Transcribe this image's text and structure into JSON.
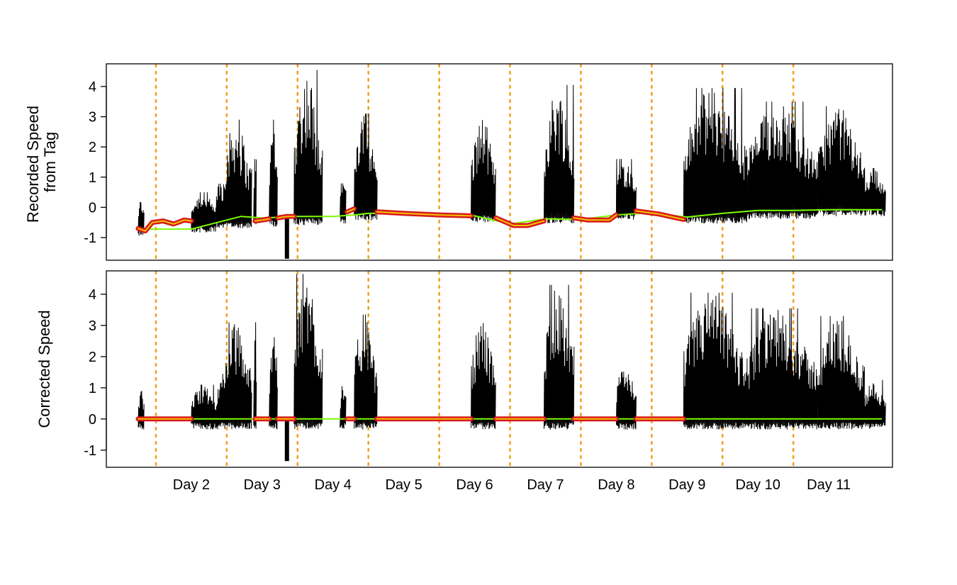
{
  "chart_data": [
    {
      "type": "line",
      "ylabel_lines": [
        "Recorded Speed",
        "from Tag"
      ],
      "ylim": [
        -1.75,
        4.75
      ],
      "yticks": [
        -1,
        0,
        1,
        2,
        3,
        4
      ],
      "ytick_labels": [
        "-1",
        "0",
        "1",
        "2",
        "3",
        "4"
      ],
      "grid": false,
      "legend": "none",
      "series": [
        {
          "role": "speed",
          "color": "#000000",
          "active_segments": [
            {
              "x0": 1.25,
              "x1": 1.33,
              "base": -0.6,
              "peak": 0.3
            },
            {
              "x0": 2.0,
              "x1": 2.35,
              "base": -0.5,
              "peak": 0.5
            },
            {
              "x0": 2.35,
              "x1": 2.45,
              "base": -0.4,
              "peak": 1.1
            },
            {
              "x0": 2.45,
              "x1": 2.85,
              "base": -0.35,
              "peak": 2.9
            },
            {
              "x0": 2.88,
              "x1": 2.92,
              "base": -0.3,
              "peak": 2.9
            },
            {
              "x0": 3.1,
              "x1": 3.22,
              "base": -0.3,
              "peak": 2.9
            },
            {
              "x0": 3.45,
              "x1": 3.85,
              "base": -0.25,
              "peak": 4.55
            },
            {
              "x0": 4.1,
              "x1": 4.18,
              "base": -0.2,
              "peak": 1.2
            },
            {
              "x0": 4.3,
              "x1": 4.62,
              "base": -0.1,
              "peak": 3.1
            },
            {
              "x0": 5.95,
              "x1": 6.3,
              "base": -0.15,
              "peak": 3.0
            },
            {
              "x0": 6.98,
              "x1": 7.4,
              "base": -0.2,
              "peak": 4.05
            },
            {
              "x0": 8.0,
              "x1": 8.28,
              "base": -0.1,
              "peak": 1.6
            },
            {
              "x0": 8.95,
              "x1": 9.85,
              "base": -0.2,
              "peak": 3.95
            },
            {
              "x0": 9.85,
              "x1": 10.85,
              "base": -0.05,
              "peak": 3.5
            },
            {
              "x0": 10.85,
              "x1": 11.5,
              "base": 0.05,
              "peak": 3.35
            },
            {
              "x0": 11.5,
              "x1": 11.8,
              "base": 0.05,
              "peak": 1.3
            }
          ],
          "spikes": [
            {
              "x": 3.35,
              "ymin": -1.7,
              "ymax": -0.3
            }
          ]
        },
        {
          "role": "offset-estimate",
          "color": "#7cfc00",
          "x": [
            1.25,
            2.0,
            2.7,
            3.0,
            3.5,
            4.0,
            4.3,
            4.5,
            5.0,
            5.5,
            6.0,
            6.5,
            7.0,
            7.5,
            8.0,
            8.5,
            9.0,
            9.5,
            10.0,
            10.5,
            11.0,
            11.5,
            11.75
          ],
          "y": [
            -0.72,
            -0.72,
            -0.3,
            -0.35,
            -0.3,
            -0.3,
            -0.25,
            -0.2,
            -0.2,
            -0.28,
            -0.28,
            -0.55,
            -0.38,
            -0.4,
            -0.25,
            -0.18,
            -0.32,
            -0.2,
            -0.1,
            -0.1,
            -0.08,
            -0.08,
            -0.08
          ]
        },
        {
          "role": "offset-inactive",
          "color": "#d7191c",
          "inner_color": "#f2c400",
          "segments": [
            {
              "x": [
                1.25,
                1.35,
                1.45,
                1.6,
                1.75,
                1.9,
                2.0
              ],
              "y": [
                -0.7,
                -0.78,
                -0.5,
                -0.45,
                -0.55,
                -0.42,
                -0.45
              ]
            },
            {
              "x": [
                2.9,
                3.0,
                3.1
              ],
              "y": [
                -0.45,
                -0.42,
                -0.38
              ]
            },
            {
              "x": [
                3.22,
                3.35,
                3.45
              ],
              "y": [
                -0.35,
                -0.3,
                -0.3
              ]
            },
            {
              "x": [
                4.2,
                4.3
              ],
              "y": [
                -0.15,
                -0.05
              ]
            },
            {
              "x": [
                4.62,
                5.0,
                5.5,
                5.95
              ],
              "y": [
                -0.15,
                -0.2,
                -0.25,
                -0.28
              ]
            },
            {
              "x": [
                6.3,
                6.55,
                6.75,
                6.98
              ],
              "y": [
                -0.35,
                -0.6,
                -0.6,
                -0.45
              ]
            },
            {
              "x": [
                7.4,
                7.6,
                7.9,
                8.0
              ],
              "y": [
                -0.35,
                -0.42,
                -0.42,
                -0.25
              ]
            },
            {
              "x": [
                8.28,
                8.6,
                8.95
              ],
              "y": [
                -0.12,
                -0.22,
                -0.4
              ]
            }
          ]
        }
      ]
    },
    {
      "type": "line",
      "ylabel_lines": [
        "Corrected Speed"
      ],
      "ylim": [
        -1.55,
        4.75
      ],
      "yticks": [
        -1,
        0,
        1,
        2,
        3,
        4
      ],
      "ytick_labels": [
        "-1",
        "0",
        "1",
        "2",
        "3",
        "4"
      ],
      "grid": false,
      "legend": "none",
      "series": [
        {
          "role": "speed",
          "color": "#000000",
          "active_segments": [
            {
              "x0": 1.25,
              "x1": 1.33,
              "base": 0.0,
              "peak": 0.9
            },
            {
              "x0": 2.0,
              "x1": 2.35,
              "base": 0.0,
              "peak": 1.1
            },
            {
              "x0": 2.35,
              "x1": 2.45,
              "base": 0.0,
              "peak": 1.45
            },
            {
              "x0": 2.45,
              "x1": 2.85,
              "base": 0.0,
              "peak": 3.1
            },
            {
              "x0": 2.88,
              "x1": 2.92,
              "base": 0.0,
              "peak": 3.1
            },
            {
              "x0": 3.1,
              "x1": 3.22,
              "base": 0.0,
              "peak": 3.2
            },
            {
              "x0": 3.45,
              "x1": 3.85,
              "base": 0.0,
              "peak": 4.65
            },
            {
              "x0": 4.1,
              "x1": 4.18,
              "base": 0.0,
              "peak": 1.3
            },
            {
              "x0": 4.3,
              "x1": 4.62,
              "base": 0.0,
              "peak": 3.35
            },
            {
              "x0": 5.95,
              "x1": 6.3,
              "base": 0.0,
              "peak": 3.25
            },
            {
              "x0": 6.98,
              "x1": 7.4,
              "base": 0.0,
              "peak": 4.3
            },
            {
              "x0": 8.0,
              "x1": 8.28,
              "base": 0.0,
              "peak": 1.85
            },
            {
              "x0": 8.95,
              "x1": 9.85,
              "base": 0.0,
              "peak": 4.05
            },
            {
              "x0": 9.85,
              "x1": 10.85,
              "base": 0.0,
              "peak": 3.55
            },
            {
              "x0": 10.85,
              "x1": 11.5,
              "base": 0.0,
              "peak": 3.3
            },
            {
              "x0": 11.5,
              "x1": 11.8,
              "base": 0.0,
              "peak": 1.25
            }
          ],
          "spikes": [
            {
              "x": 3.35,
              "ymin": -1.35,
              "ymax": 0.0
            }
          ]
        },
        {
          "role": "offset-estimate",
          "color": "#7cfc00",
          "x": [
            1.25,
            11.75
          ],
          "y": [
            0,
            0
          ]
        },
        {
          "role": "offset-inactive",
          "color": "#d7191c",
          "inner_color": "#f2c400",
          "segments": [
            {
              "x": [
                1.25,
                2.0
              ],
              "y": [
                0,
                0
              ]
            },
            {
              "x": [
                2.9,
                3.1
              ],
              "y": [
                0,
                0
              ]
            },
            {
              "x": [
                3.22,
                3.45
              ],
              "y": [
                0,
                0
              ]
            },
            {
              "x": [
                4.2,
                4.3
              ],
              "y": [
                0,
                0
              ]
            },
            {
              "x": [
                4.62,
                5.95
              ],
              "y": [
                0,
                0
              ]
            },
            {
              "x": [
                6.3,
                6.98
              ],
              "y": [
                0,
                0
              ]
            },
            {
              "x": [
                7.4,
                8.0
              ],
              "y": [
                0,
                0
              ]
            },
            {
              "x": [
                8.28,
                8.95
              ],
              "y": [
                0,
                0
              ]
            }
          ]
        }
      ]
    }
  ],
  "x_axis": {
    "xlim": [
      0.8,
      11.9
    ],
    "day_boundaries": [
      1.5,
      2.5,
      3.5,
      4.5,
      5.5,
      6.5,
      7.5,
      8.5,
      9.5,
      10.5
    ],
    "day_boundary_color": "#f0a020",
    "tick_positions": [
      2,
      3,
      4,
      5,
      6,
      7,
      8,
      9,
      10,
      11
    ],
    "tick_labels": [
      "Day 2",
      "Day 3",
      "Day 4",
      "Day 5",
      "Day 6",
      "Day 7",
      "Day 8",
      "Day 9",
      "Day 10",
      "Day 11"
    ]
  }
}
